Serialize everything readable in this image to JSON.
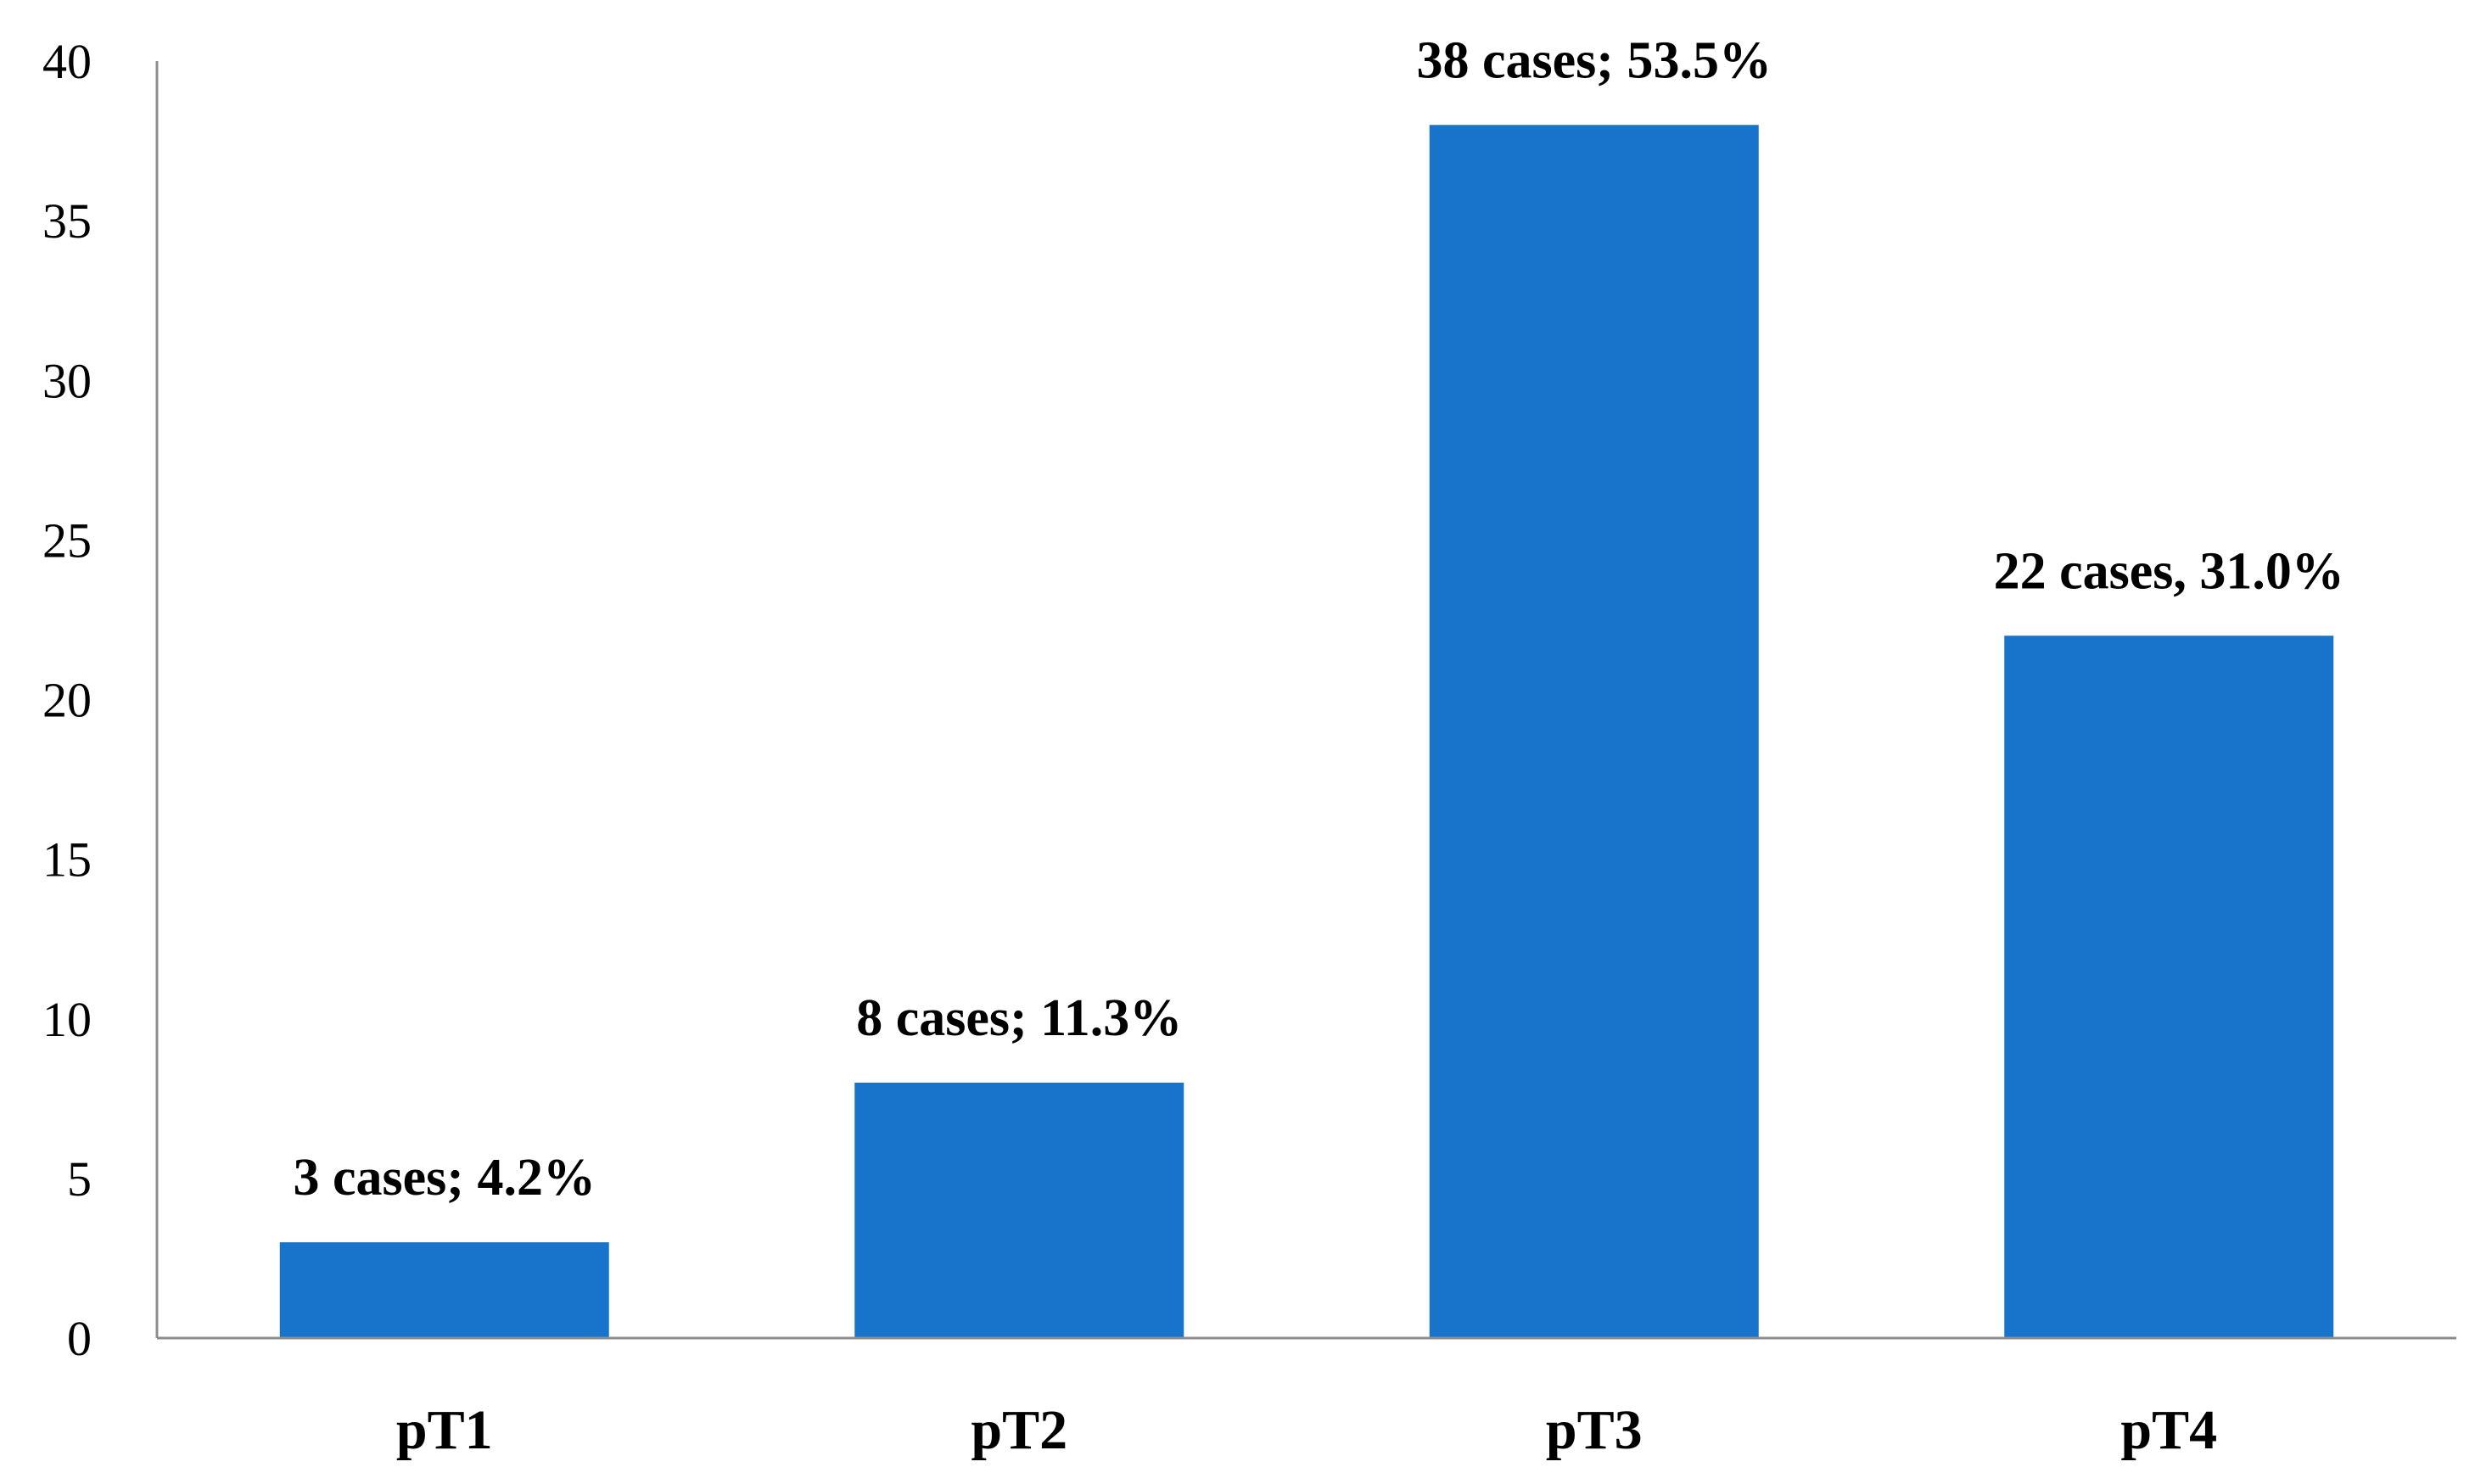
{
  "chart_data": {
    "type": "bar",
    "title": "",
    "xlabel": "",
    "ylabel": "",
    "categories": [
      "pT1",
      "pT2",
      "pT3",
      "pT4"
    ],
    "values": [
      3,
      8,
      38,
      22
    ],
    "data_labels": [
      "3 cases; 4.2%",
      "8 cases; 11.3%",
      "38 cases; 53.5%",
      "22 cases, 31.0%"
    ],
    "ylim": [
      0,
      40
    ],
    "yticks": [
      0,
      5,
      10,
      15,
      20,
      25,
      30,
      35,
      40
    ],
    "grid": false,
    "legend": "none",
    "bar_color": "#1874CA"
  }
}
